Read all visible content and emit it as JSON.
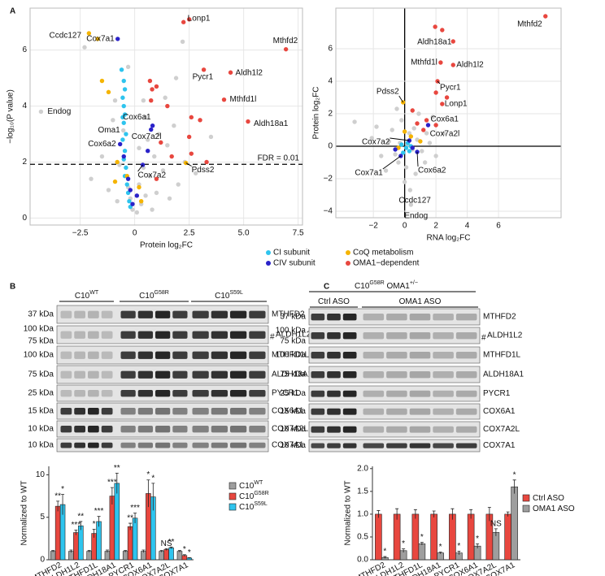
{
  "panel_labels": [
    "A",
    "B",
    "C"
  ],
  "chart_data": [
    {
      "type": "scatter",
      "xlabel": "Protein log₂FC",
      "ylabel": "−log₁₀(P value)",
      "xlim": [
        -4.8,
        7.7
      ],
      "ylim": [
        -0.25,
        7.5
      ],
      "xticks": [
        {
          "value": -2.5,
          "label": "−2.5"
        },
        0,
        2.5,
        {
          "value": 5,
          "label": "5.0"
        },
        7.5
      ],
      "yticks": [
        0,
        2,
        4,
        6
      ],
      "grid": true,
      "legend": "bottom",
      "hline": {
        "y": 1.92,
        "label": "FDR = 0.01"
      },
      "series": [
        {
          "color": "#cfcfcf",
          "x": [
            0.1,
            0.3,
            -0.1,
            0.5,
            0.2,
            0.7,
            -0.2,
            1.0,
            0.4,
            0.9,
            -0.3,
            1.3,
            0.6,
            1.1,
            0.2,
            1.5,
            -0.8,
            -1.2,
            -0.7,
            2.0,
            1.8,
            0.5,
            1.4,
            2.3,
            0.8,
            1.6,
            -1.5,
            -2.0,
            -1.0,
            2.8,
            3.5,
            1.9,
            0.4,
            -0.3,
            -0.9,
            2.2,
            -2.3,
            -4.3,
            -0.52
          ],
          "values": [
            0.2,
            0.5,
            0.3,
            0.8,
            1.2,
            1.5,
            0.7,
            0.9,
            1.8,
            2.2,
            1.1,
            1.7,
            2.8,
            3.0,
            2.5,
            2.6,
            0.6,
            1.0,
            1.9,
            1.2,
            3.3,
            3.6,
            4.3,
            2.0,
            0.3,
            0.7,
            2.2,
            1.4,
            3.5,
            1.6,
            2.9,
            5.0,
            4.2,
            5.4,
            4.2,
            6.3,
            6.1,
            3.8,
            3.13
          ]
        },
        {
          "name": "CI subunit",
          "color": "#2ec4ee",
          "x": [
            -0.5,
            -0.45,
            -0.55,
            -0.5,
            -0.45,
            -0.5,
            -0.4,
            -0.55,
            -0.45,
            -0.5,
            -0.4,
            -0.45,
            -0.35,
            -0.3,
            -0.25,
            -0.2,
            -0.6,
            -0.55
          ],
          "values": [
            4.9,
            4.6,
            4.3,
            4.0,
            3.7,
            3.4,
            3.0,
            2.8,
            2.4,
            2.1,
            1.8,
            1.5,
            1.2,
            0.9,
            0.6,
            0.4,
            5.3,
            3.6
          ]
        },
        {
          "name": "CoQ metabolism",
          "color": "#f5b400",
          "x": [
            -2.1,
            -1.7,
            -1.5,
            -1.2,
            -0.8,
            -0.35,
            0.2,
            0.3,
            2.35,
            -0.9
          ],
          "values": [
            6.6,
            6.4,
            4.9,
            4.5,
            2.0,
            1.5,
            1.1,
            0.6,
            1.97,
            1.3
          ]
        },
        {
          "name": "CIV subunit",
          "color": "#2a22c9",
          "x": [
            -0.78,
            -0.67,
            0.37,
            0.82,
            0.75,
            -0.3,
            -0.2,
            -0.1,
            0.6,
            -0.5,
            0.1
          ],
          "values": [
            6.4,
            2.64,
            1.9,
            3.3,
            3.16,
            1.4,
            1.0,
            0.5,
            2.4,
            2.2,
            0.8
          ]
        },
        {
          "name": "OMA1−dependent",
          "color": "#e8473f",
          "x": [
            2.24,
            2.5,
            6.94,
            3.17,
            4.4,
            4.1,
            5.2,
            0.7,
            0.8,
            1.0,
            0.75,
            1.5,
            2.6,
            1.2,
            2.5,
            3.0,
            1.7,
            2.6,
            3.3,
            1.0
          ],
          "values": [
            7.0,
            7.1,
            6.03,
            5.3,
            5.2,
            4.23,
            3.45,
            4.9,
            4.6,
            4.7,
            4.2,
            4.0,
            3.6,
            2.7,
            2.9,
            3.5,
            2.2,
            2.3,
            2.0,
            1.4
          ]
        }
      ],
      "annotations": [
        {
          "text": "Lonp1",
          "x": 2.24,
          "y": 7.0
        },
        {
          "text": "Mthfd2",
          "x": 6.94,
          "y": 6.03
        },
        {
          "text": "Pycr1",
          "x": 3.17,
          "y": 5.3
        },
        {
          "text": "Aldh1l2",
          "x": 4.4,
          "y": 5.2
        },
        {
          "text": "Mthfd1l",
          "x": 4.1,
          "y": 4.23
        },
        {
          "text": "Aldh18a1",
          "x": 5.2,
          "y": 3.45
        },
        {
          "text": "Ccdc127",
          "x": -2.3,
          "y": 6.1
        },
        {
          "text": "Cox7a1",
          "x": -0.78,
          "y": 6.4
        },
        {
          "text": "Endog",
          "x": -4.3,
          "y": 3.8
        },
        {
          "text": "Oma1",
          "x": -0.52,
          "y": 3.13
        },
        {
          "text": "Cox6a2",
          "x": -0.67,
          "y": 2.64
        },
        {
          "text": "Cox6a1",
          "x": 0.82,
          "y": 3.3
        },
        {
          "text": "Cox7a2l",
          "x": 0.75,
          "y": 3.16
        },
        {
          "text": "Cox7a2",
          "x": 0.37,
          "y": 1.9
        },
        {
          "text": "Pdss2",
          "x": 2.35,
          "y": 1.97
        }
      ]
    },
    {
      "type": "scatter",
      "xlabel": "RNA log₂FC",
      "ylabel": "Protein log₂FC",
      "xlim": [
        -4.4,
        10
      ],
      "ylim": [
        -4.4,
        8.5
      ],
      "xticks": [
        {
          "value": -2,
          "label": "−2"
        },
        0,
        2,
        4,
        6
      ],
      "yticks": [
        {
          "value": -4,
          "label": "−4"
        },
        {
          "value": -2,
          "label": "−2"
        },
        0,
        2,
        4,
        6
      ],
      "grid": true,
      "zero_lines": true,
      "series": [
        {
          "color": "#cfcfcf",
          "x": [
            0.2,
            -0.3,
            0.5,
            -0.6,
            0.8,
            -1.0,
            1.1,
            0.3,
            -0.4,
            0.6,
            -1.5,
            1.6,
            -0.8,
            0.1,
            1.3,
            -2.1,
            2.0,
            -0.2,
            0.7,
            -1.2,
            2.5,
            -3.2,
            0.9,
            -0.5,
            1.8,
            0.0,
            -1.8,
            0.35,
            0.4,
            1.4
          ],
          "values": [
            0.1,
            0.2,
            -0.2,
            -0.5,
            0.4,
            0.3,
            -0.3,
            0.8,
            -1.0,
            1.1,
            -0.6,
            0.2,
            1.0,
            -1.3,
            -1.0,
            0.5,
            -0.6,
            1.6,
            -1.7,
            -1.5,
            0.8,
            1.5,
            2.0,
            2.3,
            1.8,
            -2.2,
            1.2,
            -2.7,
            -3.6,
            0.8
          ]
        },
        {
          "color": "#2ec4ee",
          "x": [
            0.1,
            0.3,
            -0.2,
            0.2,
            -0.1,
            0.4
          ],
          "values": [
            -0.1,
            -0.3,
            0.1,
            0.2,
            -0.4,
            0.0
          ]
        },
        {
          "color": "#f5b400",
          "x": [
            -0.1,
            0.0,
            0.4,
            -0.4,
            1.0
          ],
          "values": [
            2.7,
            0.9,
            0.6,
            -0.1,
            0.3
          ]
        },
        {
          "color": "#2a22c9",
          "x": [
            0.3,
            -0.25,
            0.8,
            1.5,
            -0.6,
            0.5
          ],
          "values": [
            0.35,
            -0.6,
            -0.35,
            1.3,
            -0.2,
            -0.1
          ]
        },
        {
          "color": "#e8473f",
          "x": [
            9.0,
            1.95,
            2.4,
            3.1,
            3.1,
            2.3,
            2.1,
            2.0,
            2.7,
            2.4,
            1.4,
            0.8,
            1.2,
            2.0,
            0.5
          ],
          "values": [
            8.0,
            7.35,
            7.15,
            6.45,
            5.0,
            5.15,
            4.0,
            3.3,
            3.0,
            2.6,
            1.6,
            1.4,
            1.0,
            1.3,
            2.2
          ]
        }
      ],
      "annotations": [
        {
          "text": "Mthfd2",
          "x": 9.0,
          "y": 8.0
        },
        {
          "text": "Aldh18a1",
          "x": 1.95,
          "y": 7.35
        },
        {
          "text": "Aldh1l2",
          "x": 3.1,
          "y": 5.0
        },
        {
          "text": "Mthfd1l",
          "x": 2.3,
          "y": 5.15
        },
        {
          "text": "Pycr1",
          "x": 2.1,
          "y": 4.0
        },
        {
          "text": "Lonp1",
          "x": 2.4,
          "y": 2.6
        },
        {
          "text": "Pdss2",
          "x": -0.1,
          "y": 2.7
        },
        {
          "text": "Cox6a1",
          "x": 1.5,
          "y": 1.3
        },
        {
          "text": "Cox7a2l",
          "x": 1.4,
          "y": 0.8
        },
        {
          "text": "Cox7a2",
          "x": 0.3,
          "y": 0.35
        },
        {
          "text": "Cox7a1",
          "x": -0.25,
          "y": -0.6
        },
        {
          "text": "Cox6a2",
          "x": 0.8,
          "y": -0.35
        },
        {
          "text": "Ccdc127",
          "x": 0.35,
          "y": -2.7
        },
        {
          "text": "Endog",
          "x": 0.4,
          "y": -3.6
        }
      ]
    },
    {
      "type": "bar",
      "ylabel": "Normalized to WT",
      "legend": "right",
      "categories": [
        "MTHFD2",
        "ALDH1L2",
        "MTHFD1L",
        "ALDH18A1",
        "PYCR1",
        "COX6A1",
        "COX7A2L",
        "COX7A1"
      ],
      "ylim": [
        0,
        11
      ],
      "yticks": [
        0,
        5,
        10
      ],
      "series": [
        {
          "name": [
            {
              "text": "C10"
            },
            {
              "sup": "WT"
            }
          ],
          "color": "#9e9e9e",
          "values": [
            1,
            1,
            1,
            1,
            1,
            1,
            1,
            1
          ],
          "errors": [
            0.1,
            0.15,
            0.1,
            0.15,
            0.1,
            0.15,
            0.1,
            0.1
          ]
        },
        {
          "name": [
            {
              "text": "C10"
            },
            {
              "sup": "G58R"
            }
          ],
          "color": "#e8473f",
          "values": [
            6.3,
            3.2,
            3.1,
            7.5,
            3.9,
            7.8,
            1.2,
            0.5
          ],
          "errors": [
            0.6,
            0.3,
            0.5,
            1.0,
            0.4,
            1.6,
            0.1,
            0.1
          ],
          "significance": [
            "**",
            "***",
            "*",
            "***",
            "**",
            "*",
            "NS",
            "*"
          ]
        },
        {
          "name": [
            {
              "text": "C10"
            },
            {
              "sup": "S59L"
            }
          ],
          "color": "#2ec4ee",
          "values": [
            6.5,
            4.0,
            4.5,
            9.0,
            4.9,
            7.4,
            1.4,
            0.2
          ],
          "errors": [
            1.2,
            0.5,
            0.6,
            1.2,
            0.6,
            1.6,
            0.1,
            0.05
          ],
          "significance": [
            "*",
            "**",
            "***",
            "**",
            "***",
            "*",
            "**",
            "*"
          ]
        }
      ]
    },
    {
      "type": "bar",
      "ylabel": "Normalized to WT",
      "legend": "right",
      "categories": [
        "MTHFD2",
        "ALDH1L2",
        "MTHFD1L",
        "ALDH18A1",
        "PYCR1",
        "COX6A1",
        "COX7A2L",
        "COX7A1"
      ],
      "ylim": [
        0,
        2.05
      ],
      "yticks": [
        {
          "value": 0,
          "label": "0.0"
        },
        0.5,
        {
          "value": 1,
          "label": "1.0"
        },
        1.5,
        {
          "value": 2,
          "label": "2.0"
        }
      ],
      "series": [
        {
          "name": [
            {
              "text": "Ctrl ASO"
            }
          ],
          "color": "#e8473f",
          "values": [
            1,
            1,
            1,
            1,
            1,
            1,
            1,
            1
          ],
          "errors": [
            0.08,
            0.12,
            0.1,
            0.07,
            0.12,
            0.1,
            0.15,
            0.05
          ]
        },
        {
          "name": [
            {
              "text": "OMA1 ASO"
            }
          ],
          "color": "#9e9e9e",
          "values": [
            0.05,
            0.2,
            0.35,
            0.15,
            0.15,
            0.3,
            0.6,
            1.6
          ],
          "errors": [
            0.02,
            0.04,
            0.03,
            0.02,
            0.04,
            0.05,
            0.08,
            0.15
          ],
          "significance": [
            "*",
            "*",
            "*",
            "*",
            "*",
            "*",
            "NS",
            "*"
          ]
        }
      ]
    }
  ],
  "blots": [
    {
      "groups": [
        [
          {
            "text": "C10"
          },
          {
            "sup": "WT"
          }
        ],
        [
          {
            "text": "C10"
          },
          {
            "sup": "G58R"
          }
        ],
        [
          {
            "text": "C10"
          },
          {
            "sup": "S59L"
          }
        ]
      ],
      "rows": [
        {
          "protein": "MTHFD2",
          "markers": [
            "37 kDa"
          ]
        },
        {
          "protein": "ALDH1L2",
          "markers": [
            "100 kDa",
            "75 kDa"
          ],
          "mark": "#"
        },
        {
          "protein": "MTHFD1L",
          "markers": [
            "100 kDa"
          ]
        },
        {
          "protein": "ALDH18A1",
          "markers": [
            "75 kDa"
          ]
        },
        {
          "protein": "PYCR1",
          "markers": [
            "25 kDa"
          ]
        },
        {
          "protein": "COX6A1",
          "markers": [
            "15 kDa"
          ]
        },
        {
          "protein": "COX7A2L",
          "markers": [
            "10 kDa"
          ]
        },
        {
          "protein": "COX7A1",
          "markers": [
            "10 kDa"
          ]
        }
      ]
    },
    {
      "header": [
        {
          "text": "C10"
        },
        {
          "sup": "G58R"
        },
        {
          "text": " OMA1"
        },
        {
          "sup": "+/−"
        }
      ],
      "groups": [
        [
          {
            "text": "Ctrl ASO"
          }
        ],
        [
          {
            "text": "OMA1 ASO"
          }
        ]
      ],
      "rows": [
        {
          "protein": "MTHFD2",
          "markers": [
            "37 kDa"
          ]
        },
        {
          "protein": "ALDH1L2",
          "markers": [
            "100 kDa",
            "75 kDa"
          ],
          "mark": "#"
        },
        {
          "protein": "MTHFD1L",
          "markers": [
            "100 kDa"
          ]
        },
        {
          "protein": "ALDH18A1",
          "markers": [
            "75 kDa"
          ]
        },
        {
          "protein": "PYCR1",
          "markers": [
            "25 kDa"
          ]
        },
        {
          "protein": "COX6A1",
          "markers": [
            "15 kDa"
          ]
        },
        {
          "protein": "COX7A2L",
          "markers": [
            "10 kDa"
          ]
        },
        {
          "protein": "COX7A1",
          "markers": [
            "10 kDa"
          ]
        }
      ]
    }
  ]
}
